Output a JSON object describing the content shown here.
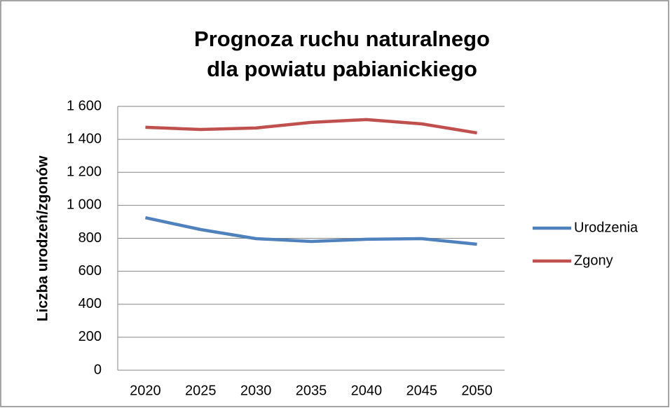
{
  "chart_data": {
    "type": "line",
    "title": [
      "Prognoza ruchu naturalnego",
      "dla powiatu pabianickiego"
    ],
    "y_label": "Liczba urodzeń/zgonów",
    "categories": [
      "2020",
      "2025",
      "2030",
      "2035",
      "2040",
      "2045",
      "2050"
    ],
    "series": [
      {
        "name": "Urodzenia",
        "color": "#4f81bd",
        "values": [
          925,
          853,
          798,
          781,
          794,
          798,
          764
        ]
      },
      {
        "name": "Zgony",
        "color": "#c0504d",
        "values": [
          1473,
          1460,
          1469,
          1503,
          1520,
          1494,
          1439
        ]
      }
    ],
    "ylim": [
      0,
      1600
    ],
    "yticks": [
      0,
      200,
      400,
      600,
      800,
      {
        "value": 1000,
        "label": "1 000"
      },
      {
        "value": 1200,
        "label": "1 200"
      },
      {
        "value": 1400,
        "label": "1 400"
      },
      {
        "value": 1600,
        "label": "1 600"
      }
    ],
    "grid": true,
    "legend": "right"
  }
}
